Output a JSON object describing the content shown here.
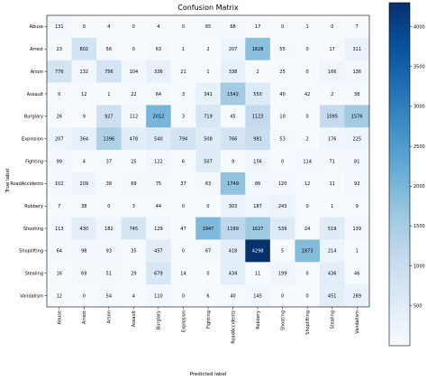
{
  "chart_data": {
    "type": "heatmap",
    "title": "Confusion Matrix",
    "xlabel": "Predicted label",
    "ylabel": "True label",
    "labels": [
      "Abuse",
      "Arrest",
      "Arson",
      "Assault",
      "Burglary",
      "Explosion",
      "Fighting",
      "RoadAccidents",
      "Robbery",
      "Shooting",
      "Shoplifting",
      "Stealing",
      "Vandalism"
    ],
    "matrix": [
      [
        131,
        0,
        4,
        0,
        4,
        0,
        65,
        68,
        17,
        0,
        1,
        0,
        7
      ],
      [
        23,
        802,
        56,
        0,
        63,
        1,
        2,
        207,
        1828,
        55,
        0,
        17,
        311
      ],
      [
        776,
        132,
        756,
        104,
        336,
        21,
        1,
        338,
        2,
        25,
        0,
        166,
        136
      ],
      [
        0,
        12,
        1,
        22,
        64,
        3,
        341,
        1542,
        550,
        40,
        42,
        2,
        38
      ],
      [
        26,
        9,
        927,
        112,
        2012,
        3,
        719,
        45,
        1123,
        10,
        0,
        1095,
        1576
      ],
      [
        207,
        364,
        1396,
        478,
        540,
        794,
        508,
        766,
        981,
        53,
        2,
        176,
        225
      ],
      [
        99,
        4,
        37,
        25,
        122,
        6,
        507,
        9,
        156,
        0,
        114,
        71,
        81
      ],
      [
        102,
        209,
        38,
        69,
        75,
        37,
        63,
        1749,
        86,
        120,
        12,
        11,
        92
      ],
      [
        7,
        38,
        0,
        3,
        44,
        0,
        0,
        303,
        187,
        243,
        0,
        1,
        9
      ],
      [
        113,
        430,
        182,
        745,
        129,
        47,
        1947,
        1189,
        1627,
        539,
        24,
        519,
        139
      ],
      [
        64,
        98,
        93,
        35,
        457,
        0,
        67,
        418,
        4298,
        5,
        1873,
        214,
        1
      ],
      [
        16,
        69,
        51,
        29,
        679,
        14,
        0,
        434,
        11,
        199,
        0,
        436,
        46
      ],
      [
        12,
        0,
        54,
        4,
        110,
        0,
        6,
        40,
        145,
        0,
        0,
        451,
        289
      ]
    ],
    "colorbar": {
      "range": [
        0,
        4300
      ],
      "ticks": [
        "500",
        "1000",
        "1500",
        "2000",
        "2500",
        "3000",
        "3500",
        "4000"
      ],
      "tick_values": [
        500,
        1000,
        1500,
        2000,
        2500,
        3000,
        3500,
        4000
      ]
    },
    "colormap": "Blues",
    "grid": false
  }
}
